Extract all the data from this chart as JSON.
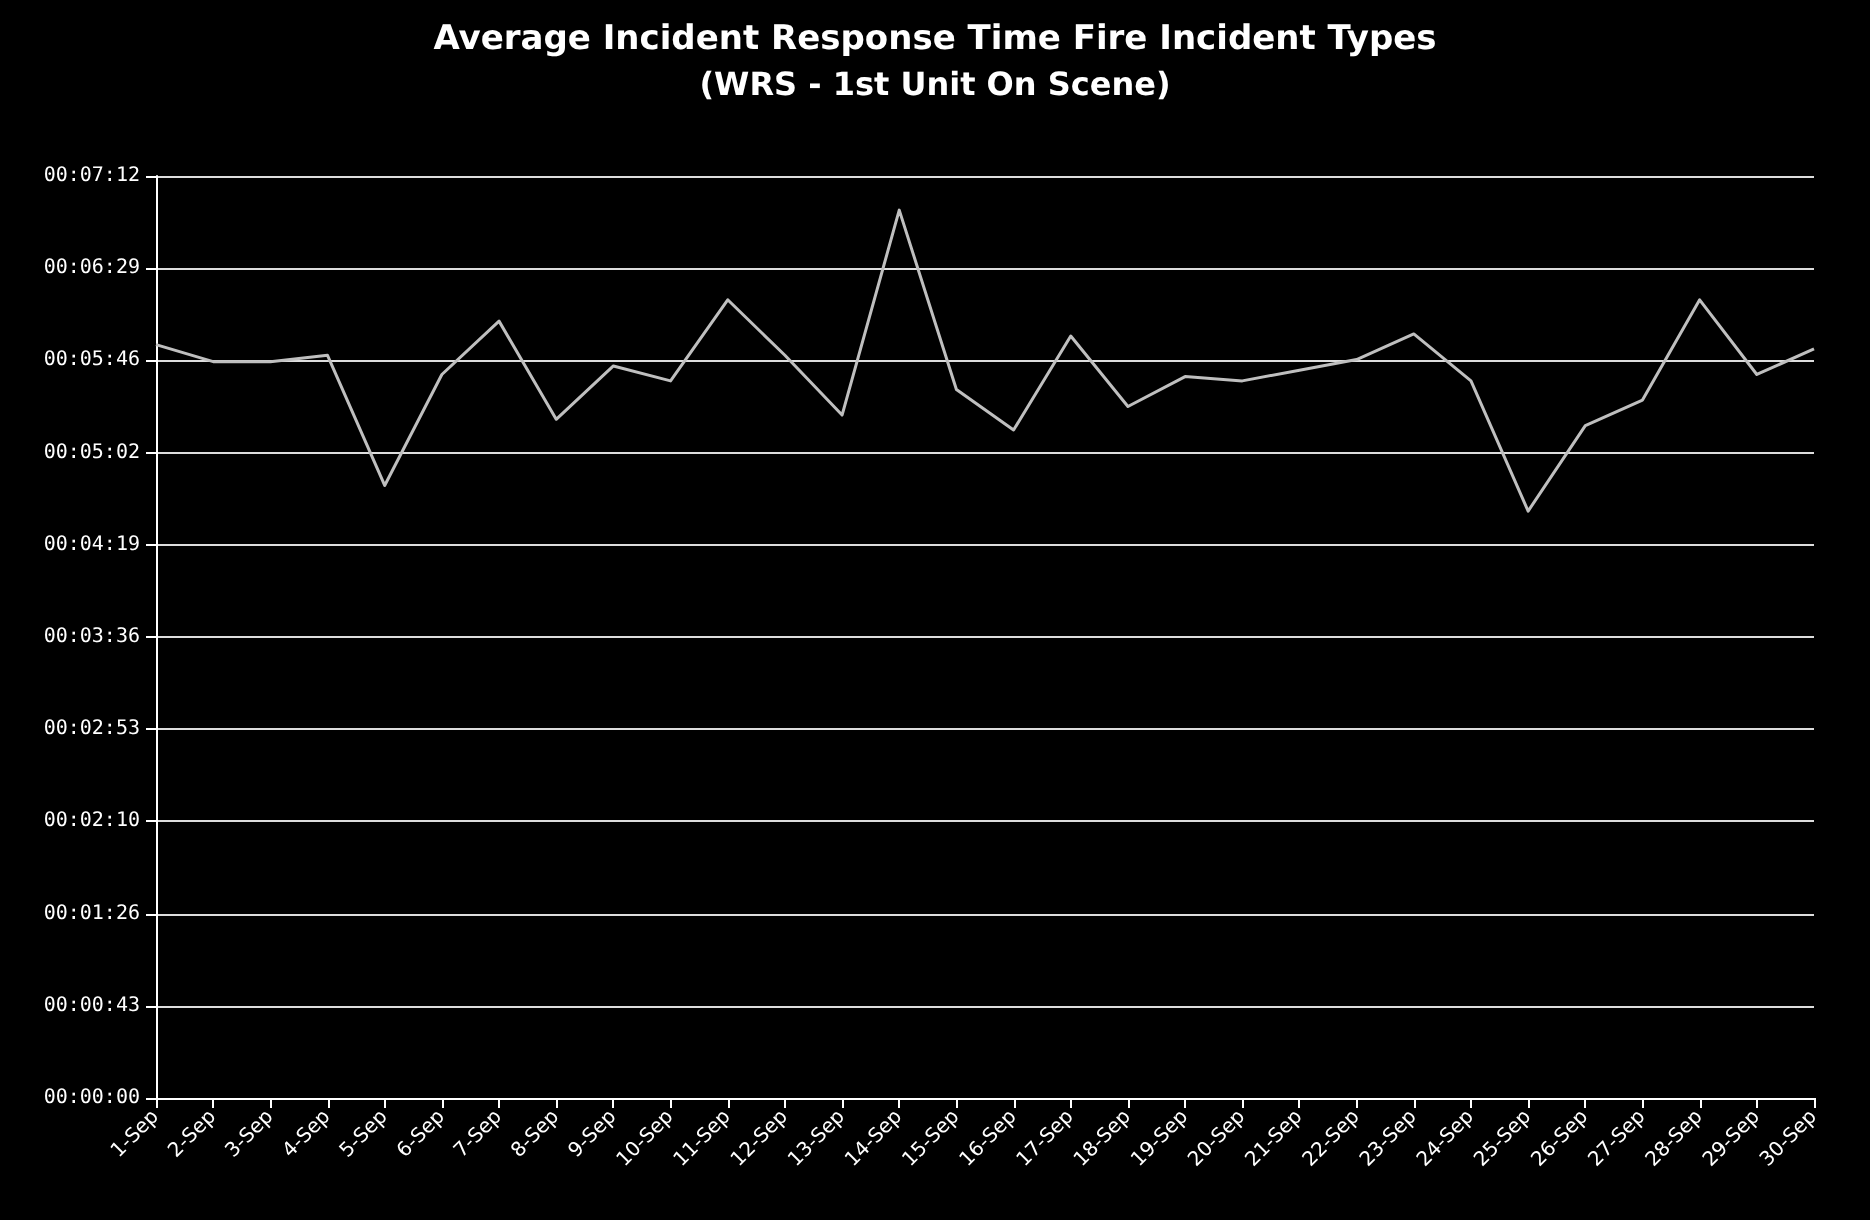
{
  "chart_data": {
    "type": "line",
    "title": "Average Incident Response Time Fire Incident Types",
    "subtitle": "(WRS - 1st Unit On Scene)",
    "categories": [
      "1-Sep",
      "2-Sep",
      "3-Sep",
      "4-Sep",
      "5-Sep",
      "6-Sep",
      "7-Sep",
      "8-Sep",
      "9-Sep",
      "10-Sep",
      "11-Sep",
      "12-Sep",
      "13-Sep",
      "14-Sep",
      "15-Sep",
      "16-Sep",
      "17-Sep",
      "18-Sep",
      "19-Sep",
      "20-Sep",
      "21-Sep",
      "22-Sep",
      "23-Sep",
      "24-Sep",
      "25-Sep",
      "26-Sep",
      "27-Sep",
      "28-Sep",
      "29-Sep",
      "30-Sep"
    ],
    "series": [
      {
        "color": "#bfbfbf",
        "values": [
          353,
          345,
          345,
          348,
          287,
          339,
          364,
          318,
          343,
          336,
          374,
          348,
          320,
          416,
          332,
          313,
          357,
          324,
          338,
          336,
          341,
          346,
          358,
          336,
          275,
          315,
          327,
          374,
          339,
          351
        ]
      }
    ],
    "ylim": [
      0,
      432
    ],
    "yticks": [
      {
        "value": 0,
        "label": "00:00:00"
      },
      {
        "value": 43.2,
        "label": "00:00:43"
      },
      {
        "value": 86.4,
        "label": "00:01:26"
      },
      {
        "value": 129.6,
        "label": "00:02:10"
      },
      {
        "value": 172.8,
        "label": "00:02:53"
      },
      {
        "value": 216,
        "label": "00:03:36"
      },
      {
        "value": 259.2,
        "label": "00:04:19"
      },
      {
        "value": 302.4,
        "label": "00:05:02"
      },
      {
        "value": 345.6,
        "label": "00:05:46"
      },
      {
        "value": 388.8,
        "label": "00:06:29"
      },
      {
        "value": 432,
        "label": "00:07:12"
      }
    ],
    "grid": "y",
    "marker": "none",
    "line_style": "solid"
  }
}
